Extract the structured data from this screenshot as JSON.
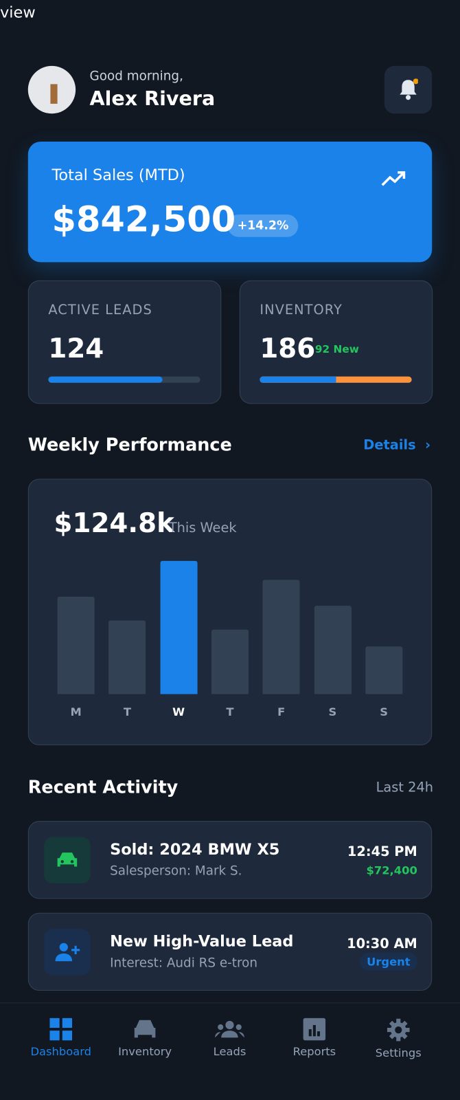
{
  "top_fragment": "view",
  "header": {
    "greeting": "Good morning,",
    "name": "Alex Rivera"
  },
  "sales_card": {
    "label": "Total Sales (MTD)",
    "value": "$842,500",
    "change": "+14.2%"
  },
  "stats": [
    {
      "label": "ACTIVE LEADS",
      "value": "124",
      "progress": 75
    },
    {
      "label": "INVENTORY",
      "value": "186",
      "badge": "92 New",
      "split": 50
    }
  ],
  "weekly": {
    "title": "Weekly Performance",
    "link": "Details",
    "total": "$124.8k",
    "period": "This Week",
    "days": [
      "M",
      "T",
      "W",
      "T",
      "F",
      "S",
      "S"
    ],
    "values": [
      129,
      97,
      176,
      85,
      151,
      117,
      63
    ],
    "color": "#334155",
    "highlight_color": "#1a82e8",
    "highlight": 2
  },
  "activity": {
    "title": "Recent Activity",
    "range": "Last 24h",
    "items": [
      {
        "title": "Sold: 2024 BMW X5",
        "subtitle": "Salesperson: Mark S.",
        "time": "12:45 PM",
        "tag": "$72,400"
      },
      {
        "title": "New High-Value Lead",
        "subtitle": "Interest: Audi RS e-tron",
        "time": "10:30 AM",
        "tag": "Urgent"
      }
    ]
  },
  "nav": [
    "Dashboard",
    "Inventory",
    "Leads",
    "Reports",
    "Settings"
  ]
}
